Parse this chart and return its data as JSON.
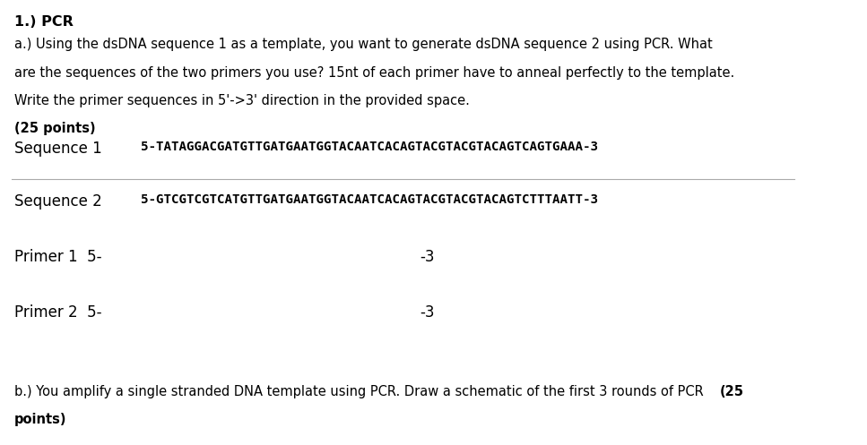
{
  "background_color": "#ffffff",
  "title_bold": "1.) PCR",
  "para_a_line1": "a.) Using the dsDNA sequence 1 as a template, you want to generate dsDNA sequence 2 using PCR. What",
  "para_a_line2": "are the sequences of the two primers you use? 15nt of each primer have to anneal perfectly to the template.",
  "para_a_line3": "Write the primer sequences in 5'->3' direction in the provided space.",
  "para_a_bold": "(25 points)",
  "seq1_label": "Sequence 1",
  "seq1_value": "5-TATAGGACGATGTTGATGAATGGTACAATCACAGTACGTACGTACAGTCAGTGAAA-3",
  "seq2_label": "Sequence 2",
  "seq2_value": "5-GTCGTCGTCATGTTGATGAATGGTACAATCACAGTACGTACGTACAGTCTTTAATT-3",
  "primer1_label": "Primer 1  5-",
  "primer1_end": "-3",
  "primer2_label": "Primer 2  5-",
  "primer2_end": "-3",
  "para_b_normal": "b.) You amplify a single stranded DNA template using PCR. Draw a schematic of the first 3 rounds of PCR ",
  "para_b_bold_inline": "(25",
  "para_b_bold_next": "points)",
  "line_color": "#aaaaaa",
  "text_color": "#000000",
  "mono_font": "DejaVu Sans Mono",
  "normal_font": "DejaVu Sans",
  "fig_width": 9.67,
  "fig_height": 4.97
}
